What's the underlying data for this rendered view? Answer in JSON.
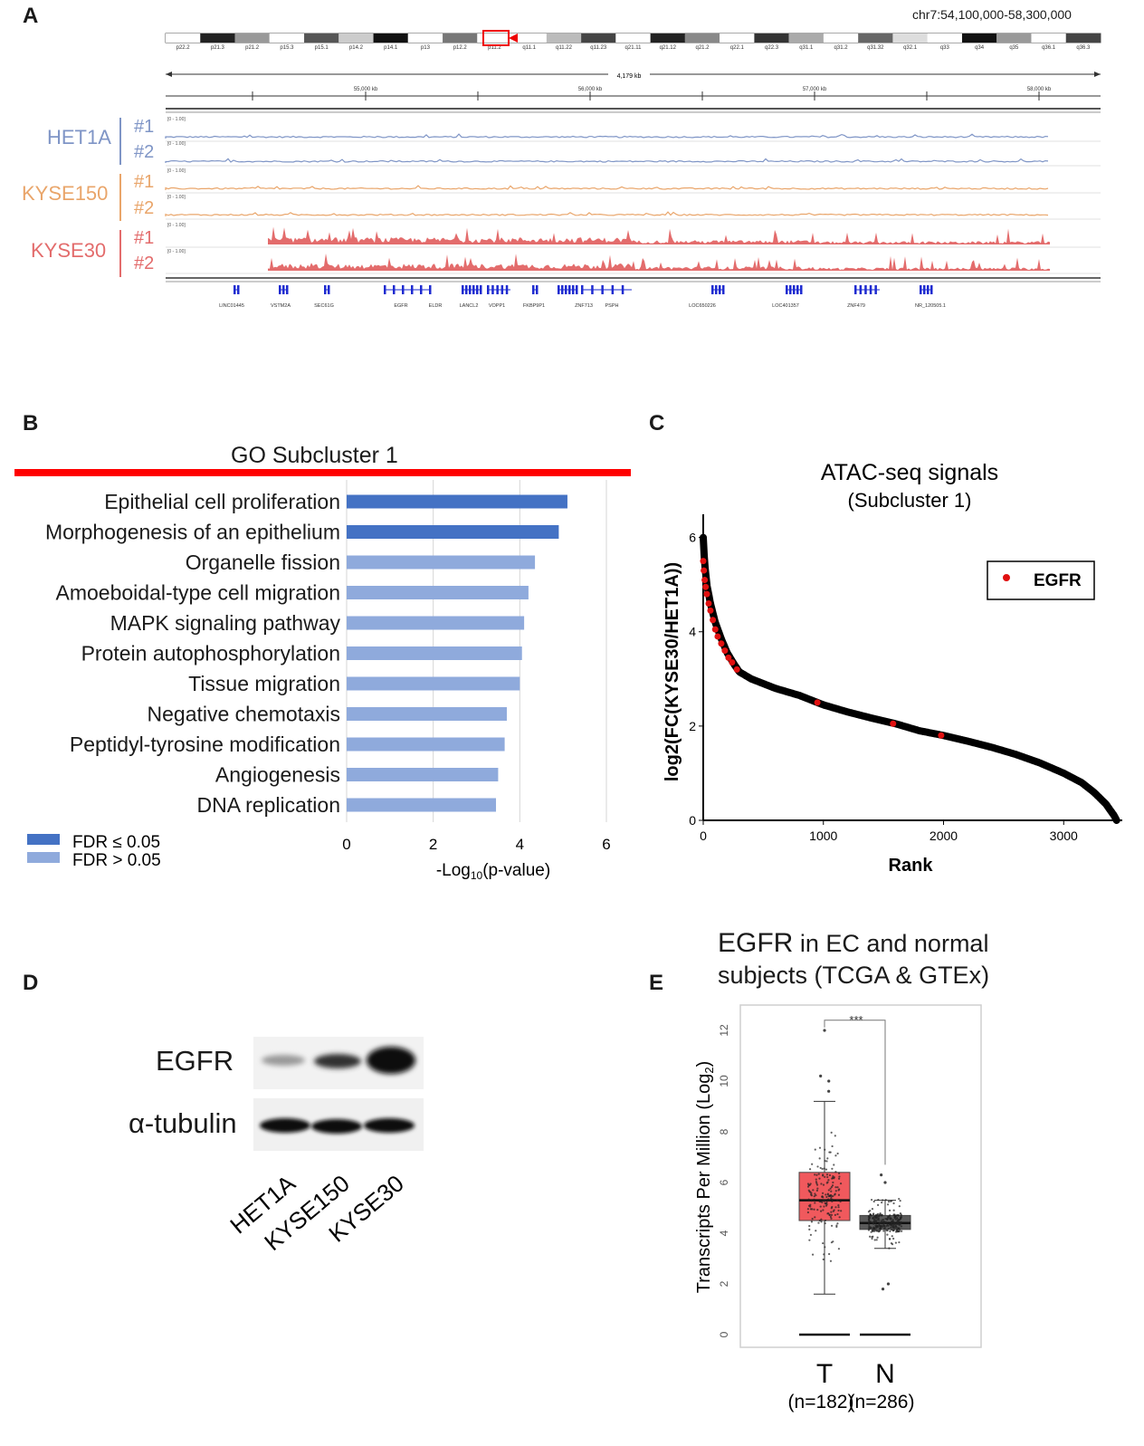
{
  "panel_labels": {
    "a": "A",
    "b": "B",
    "c": "C",
    "d": "D",
    "e": "E"
  },
  "panel_a": {
    "region": "chr7:54,100,000-58,300,000",
    "span": "4,179 kb",
    "ruler_ticks": [
      "55,000 kb",
      "56,000 kb",
      "57,000 kb",
      "58,000 kb"
    ],
    "bands": [
      "p22.2",
      "p21.3",
      "p21.2",
      "p15.3",
      "p15.1",
      "p14.2",
      "p14.1",
      "p13",
      "p12.2",
      "p11.2",
      "q11.1",
      "q11.22",
      "q11.23",
      "q21.11",
      "q21.12",
      "q21.2",
      "q22.1",
      "q22.3",
      "q31.1",
      "q31.2",
      "q31.32",
      "q32.1",
      "q33",
      "q34",
      "q35",
      "q36.1",
      "q36.3"
    ],
    "track_range": "[0 - 1.00]",
    "samples": [
      {
        "name": "HET1A",
        "color": "#7f95c6",
        "reps": [
          "#1",
          "#2"
        ]
      },
      {
        "name": "KYSE150",
        "color": "#e9a56a",
        "reps": [
          "#1",
          "#2"
        ]
      },
      {
        "name": "KYSE30",
        "color": "#e36c6c",
        "reps": [
          "#1",
          "#2"
        ]
      }
    ],
    "genes": [
      "LINC01445",
      "VSTM2A",
      "SEC61G",
      "EGFR",
      "ELDR",
      "LANCL2",
      "VOPP1",
      "FKBP9P1",
      "ZNF713",
      "PSPH",
      "LOC650226",
      "LOC401357",
      "ZNF479",
      "NR_120505.1"
    ]
  },
  "panel_b": {
    "title": "GO Subcluster  1",
    "legend": [
      "FDR ≤ 0.05",
      "FDR > 0.05"
    ],
    "colors": {
      "sig": "#4472c4",
      "nonsig": "#8faadc"
    },
    "chart_data": {
      "type": "bar",
      "orientation": "horizontal",
      "title": "GO Subcluster  1",
      "categories": [
        "Epithelial cell proliferation",
        "Morphogenesis of an epithelium",
        "Organelle fission",
        "Amoeboidal-type cell migration",
        "MAPK signaling pathway",
        "Protein autophosphorylation",
        "Tissue migration",
        "Negative chemotaxis",
        "Peptidyl-tyrosine modification",
        "Angiogenesis",
        "DNA replication"
      ],
      "values": [
        5.1,
        4.9,
        4.35,
        4.2,
        4.1,
        4.05,
        4.0,
        3.7,
        3.65,
        3.5,
        3.45
      ],
      "significant": [
        true,
        true,
        false,
        false,
        false,
        false,
        false,
        false,
        false,
        false,
        false
      ],
      "xlabel_main": "-Log",
      "xlabel_sub": "10",
      "xlabel_tail": "(p-value)",
      "xticks": [
        "0",
        "2",
        "4",
        "6"
      ],
      "xlim": [
        0,
        6.2
      ]
    }
  },
  "panel_c": {
    "title_line1": "ATAC-seq signals",
    "title_line2": "(Subcluster 1)",
    "legend": "EGFR",
    "chart_data": {
      "type": "scatter",
      "xlabel": "Rank",
      "ylabel": "log2(FC(KYSE30/HET1A))",
      "xticks": [
        "0",
        "1000",
        "2000",
        "3000"
      ],
      "yticks": [
        "0",
        "2",
        "4",
        "6"
      ],
      "xlim": [
        0,
        3450
      ],
      "ylim": [
        0,
        6.3
      ],
      "curve_points": [
        [
          0,
          6.0
        ],
        [
          10,
          5.5
        ],
        [
          30,
          5.0
        ],
        [
          60,
          4.6
        ],
        [
          100,
          4.2
        ],
        [
          150,
          3.85
        ],
        [
          200,
          3.55
        ],
        [
          260,
          3.3
        ],
        [
          300,
          3.15
        ],
        [
          400,
          3.0
        ],
        [
          600,
          2.8
        ],
        [
          800,
          2.65
        ],
        [
          1000,
          2.45
        ],
        [
          1200,
          2.3
        ],
        [
          1400,
          2.17
        ],
        [
          1600,
          2.05
        ],
        [
          1800,
          1.9
        ],
        [
          2000,
          1.8
        ],
        [
          2200,
          1.68
        ],
        [
          2400,
          1.55
        ],
        [
          2600,
          1.4
        ],
        [
          2800,
          1.22
        ],
        [
          3000,
          1.0
        ],
        [
          3150,
          0.8
        ],
        [
          3250,
          0.6
        ],
        [
          3350,
          0.35
        ],
        [
          3420,
          0.1
        ],
        [
          3440,
          0.0
        ]
      ],
      "egfr_points": [
        [
          0,
          5.5
        ],
        [
          5,
          5.3
        ],
        [
          12,
          5.1
        ],
        [
          20,
          4.95
        ],
        [
          30,
          4.8
        ],
        [
          45,
          4.6
        ],
        [
          60,
          4.45
        ],
        [
          80,
          4.25
        ],
        [
          100,
          4.05
        ],
        [
          120,
          3.9
        ],
        [
          150,
          3.75
        ],
        [
          180,
          3.6
        ],
        [
          210,
          3.45
        ],
        [
          240,
          3.35
        ],
        [
          280,
          3.2
        ],
        [
          950,
          2.5
        ],
        [
          1580,
          2.05
        ],
        [
          1980,
          1.8
        ]
      ]
    }
  },
  "panel_d": {
    "rows": [
      "EGFR",
      "α-tubulin"
    ],
    "lanes": [
      "HET1A",
      "KYSE150",
      "KYSE30"
    ]
  },
  "panel_e": {
    "title_bold": "EGFR",
    "title_rest": " in EC and normal",
    "title_line2": "subjects (TCGA & GTEx)",
    "significance": "***",
    "chart_data": {
      "type": "box",
      "ylabel": "Transcripts Per Million (Log",
      "ylabel_sub": "2",
      "ylabel_end": ")",
      "yticks": [
        "0",
        "2",
        "4",
        "6",
        "8",
        "10",
        "12"
      ],
      "ylim": [
        -0.5,
        13
      ],
      "groups": [
        {
          "name": "T",
          "n": "(n=182)",
          "color": "#f0595d",
          "q1": 4.5,
          "median": 5.3,
          "q3": 6.4,
          "whisker_low": 1.6,
          "whisker_high": 9.2,
          "outliers": [
            10.2,
            10.0,
            12.0,
            9.6
          ]
        },
        {
          "name": "N",
          "n": "(n=286)",
          "color": "#5a5a5a",
          "q1": 4.15,
          "median": 4.4,
          "q3": 4.7,
          "whisker_low": 3.4,
          "whisker_high": 5.3,
          "outliers": [
            6.3,
            6.0,
            2.0,
            1.8
          ]
        }
      ]
    }
  }
}
